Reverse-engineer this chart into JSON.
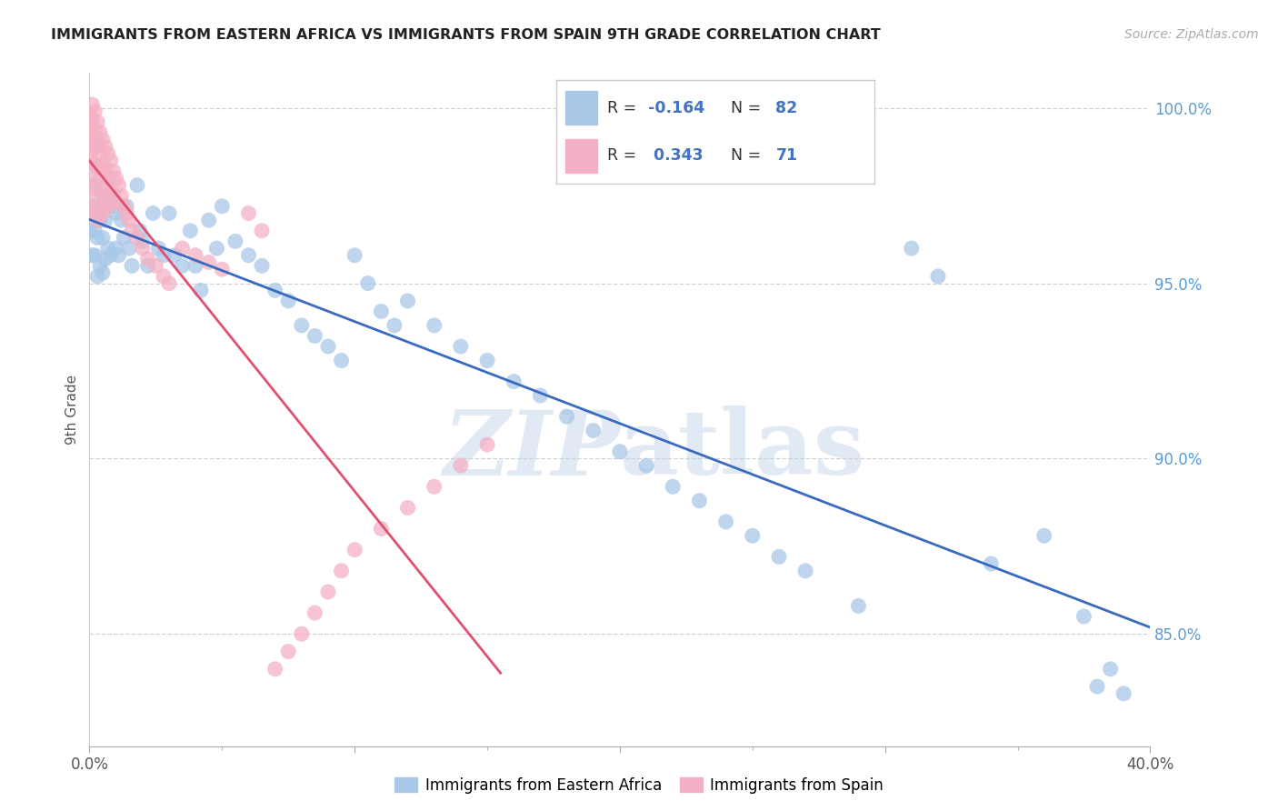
{
  "title": "IMMIGRANTS FROM EASTERN AFRICA VS IMMIGRANTS FROM SPAIN 9TH GRADE CORRELATION CHART",
  "source": "Source: ZipAtlas.com",
  "ylabel": "9th Grade",
  "xlim": [
    0.0,
    0.4
  ],
  "ylim": [
    0.818,
    1.01
  ],
  "blue_color": "#a8c8e8",
  "pink_color": "#f4b0c4",
  "blue_line_color": "#3a6abf",
  "pink_line_color": "#e05070",
  "watermark_zip": "ZIP",
  "watermark_atlas": "atlas",
  "blue_R": -0.164,
  "blue_N": 82,
  "pink_R": 0.343,
  "pink_N": 71,
  "legend_label_blue": "Immigrants from Eastern Africa",
  "legend_label_pink": "Immigrants from Spain",
  "ytick_positions": [
    0.85,
    0.9,
    0.95,
    1.0
  ],
  "ytick_labels": [
    "85.0%",
    "90.0%",
    "95.0%",
    "100.0%"
  ],
  "xtick_positions": [
    0.0,
    0.1,
    0.2,
    0.3,
    0.4
  ],
  "xtick_labels": [
    "0.0%",
    "",
    "",
    "",
    "40.0%"
  ],
  "blue_x": [
    0.0,
    0.001,
    0.001,
    0.002,
    0.002,
    0.002,
    0.003,
    0.003,
    0.003,
    0.004,
    0.004,
    0.005,
    0.005,
    0.005,
    0.006,
    0.006,
    0.007,
    0.007,
    0.008,
    0.009,
    0.01,
    0.01,
    0.011,
    0.012,
    0.013,
    0.014,
    0.015,
    0.016,
    0.018,
    0.019,
    0.02,
    0.022,
    0.024,
    0.026,
    0.028,
    0.03,
    0.032,
    0.035,
    0.038,
    0.04,
    0.042,
    0.045,
    0.048,
    0.05,
    0.055,
    0.06,
    0.065,
    0.07,
    0.075,
    0.08,
    0.085,
    0.09,
    0.095,
    0.1,
    0.105,
    0.11,
    0.115,
    0.12,
    0.13,
    0.14,
    0.15,
    0.16,
    0.17,
    0.18,
    0.19,
    0.2,
    0.21,
    0.22,
    0.23,
    0.24,
    0.25,
    0.26,
    0.27,
    0.29,
    0.31,
    0.32,
    0.34,
    0.36,
    0.375,
    0.38,
    0.385,
    0.39
  ],
  "blue_y": [
    0.965,
    0.972,
    0.958,
    0.978,
    0.965,
    0.958,
    0.97,
    0.963,
    0.952,
    0.968,
    0.955,
    0.975,
    0.963,
    0.953,
    0.968,
    0.957,
    0.975,
    0.96,
    0.958,
    0.972,
    0.97,
    0.96,
    0.958,
    0.968,
    0.963,
    0.972,
    0.96,
    0.955,
    0.978,
    0.965,
    0.962,
    0.955,
    0.97,
    0.96,
    0.958,
    0.97,
    0.958,
    0.955,
    0.965,
    0.955,
    0.948,
    0.968,
    0.96,
    0.972,
    0.962,
    0.958,
    0.955,
    0.948,
    0.945,
    0.938,
    0.935,
    0.932,
    0.928,
    0.958,
    0.95,
    0.942,
    0.938,
    0.945,
    0.938,
    0.932,
    0.928,
    0.922,
    0.918,
    0.912,
    0.908,
    0.902,
    0.898,
    0.892,
    0.888,
    0.882,
    0.878,
    0.872,
    0.868,
    0.858,
    0.96,
    0.952,
    0.87,
    0.878,
    0.855,
    0.835,
    0.84,
    0.833
  ],
  "pink_x": [
    0.0,
    0.0,
    0.0,
    0.0,
    0.001,
    0.001,
    0.001,
    0.001,
    0.001,
    0.001,
    0.002,
    0.002,
    0.002,
    0.002,
    0.002,
    0.002,
    0.003,
    0.003,
    0.003,
    0.003,
    0.003,
    0.004,
    0.004,
    0.004,
    0.004,
    0.005,
    0.005,
    0.005,
    0.005,
    0.006,
    0.006,
    0.006,
    0.007,
    0.007,
    0.007,
    0.008,
    0.008,
    0.009,
    0.009,
    0.01,
    0.01,
    0.011,
    0.012,
    0.013,
    0.014,
    0.015,
    0.016,
    0.018,
    0.02,
    0.022,
    0.025,
    0.028,
    0.03,
    0.035,
    0.04,
    0.045,
    0.05,
    0.06,
    0.065,
    0.07,
    0.075,
    0.08,
    0.085,
    0.09,
    0.095,
    0.1,
    0.11,
    0.12,
    0.13,
    0.14,
    0.15
  ],
  "pink_y": [
    0.998,
    0.995,
    0.99,
    0.985,
    1.001,
    0.997,
    0.992,
    0.988,
    0.98,
    0.972,
    0.999,
    0.994,
    0.989,
    0.984,
    0.977,
    0.97,
    0.996,
    0.99,
    0.983,
    0.975,
    0.968,
    0.993,
    0.987,
    0.98,
    0.972,
    0.991,
    0.984,
    0.977,
    0.97,
    0.989,
    0.982,
    0.974,
    0.987,
    0.98,
    0.972,
    0.985,
    0.977,
    0.982,
    0.975,
    0.98,
    0.973,
    0.978,
    0.975,
    0.972,
    0.97,
    0.968,
    0.965,
    0.963,
    0.96,
    0.957,
    0.955,
    0.952,
    0.95,
    0.96,
    0.958,
    0.956,
    0.954,
    0.97,
    0.965,
    0.84,
    0.845,
    0.85,
    0.856,
    0.862,
    0.868,
    0.874,
    0.88,
    0.886,
    0.892,
    0.898,
    0.904
  ]
}
